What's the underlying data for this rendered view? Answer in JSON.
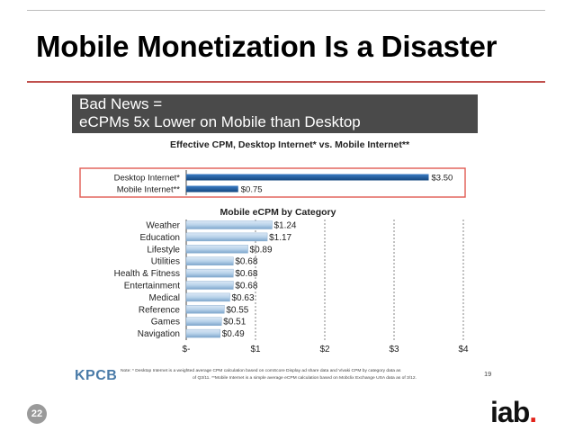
{
  "slide": {
    "title": "Mobile Monetization Is a Disaster",
    "page_number": "22",
    "logo_text": "iab",
    "logo_dot": ".",
    "accent_color": "#c0504d"
  },
  "banner": {
    "line1": "Bad News =",
    "line2": "eCPMs 5x Lower on Mobile than Desktop"
  },
  "footer": {
    "brand": "KPCB",
    "note_line1": "Note: * Desktop Internet is a weighted average CPM calculation based on comScore Display ad share data and Vivaki CPM by category data as",
    "note_line2": "of Q3/11. **Mobile Internet is a simple average eCPM calculation based on Mobclix Exchange USA data as of 3/12.",
    "page": "19"
  },
  "chart_data": [
    {
      "type": "bar",
      "orientation": "horizontal",
      "title": "Effective CPM, Desktop Internet* vs. Mobile Internet**",
      "categories": [
        "Desktop Internet*",
        "Mobile Internet**"
      ],
      "values": [
        3.5,
        0.75
      ],
      "value_labels": [
        "$3.50",
        "$0.75"
      ],
      "bar_color": "#1f5fa8",
      "highlight_color": "#e05a52"
    },
    {
      "type": "bar",
      "orientation": "horizontal",
      "title": "Mobile eCPM by Category",
      "categories": [
        "Weather",
        "Education",
        "Lifestyle",
        "Utilities",
        "Health & Fitness",
        "Entertainment",
        "Medical",
        "Reference",
        "Games",
        "Navigation"
      ],
      "values": [
        1.24,
        1.17,
        0.89,
        0.68,
        0.68,
        0.68,
        0.63,
        0.55,
        0.51,
        0.49
      ],
      "value_labels": [
        "$1.24",
        "$1.17",
        "$0.89",
        "$0.68",
        "$0.68",
        "$0.68",
        "$0.63",
        "$0.55",
        "$0.51",
        "$0.49"
      ],
      "xlim": [
        0,
        4
      ],
      "xticks": [
        "$-",
        "$1",
        "$2",
        "$3",
        "$4"
      ],
      "grid": "dashed vertical",
      "bar_color": "#b9d3ea"
    }
  ]
}
